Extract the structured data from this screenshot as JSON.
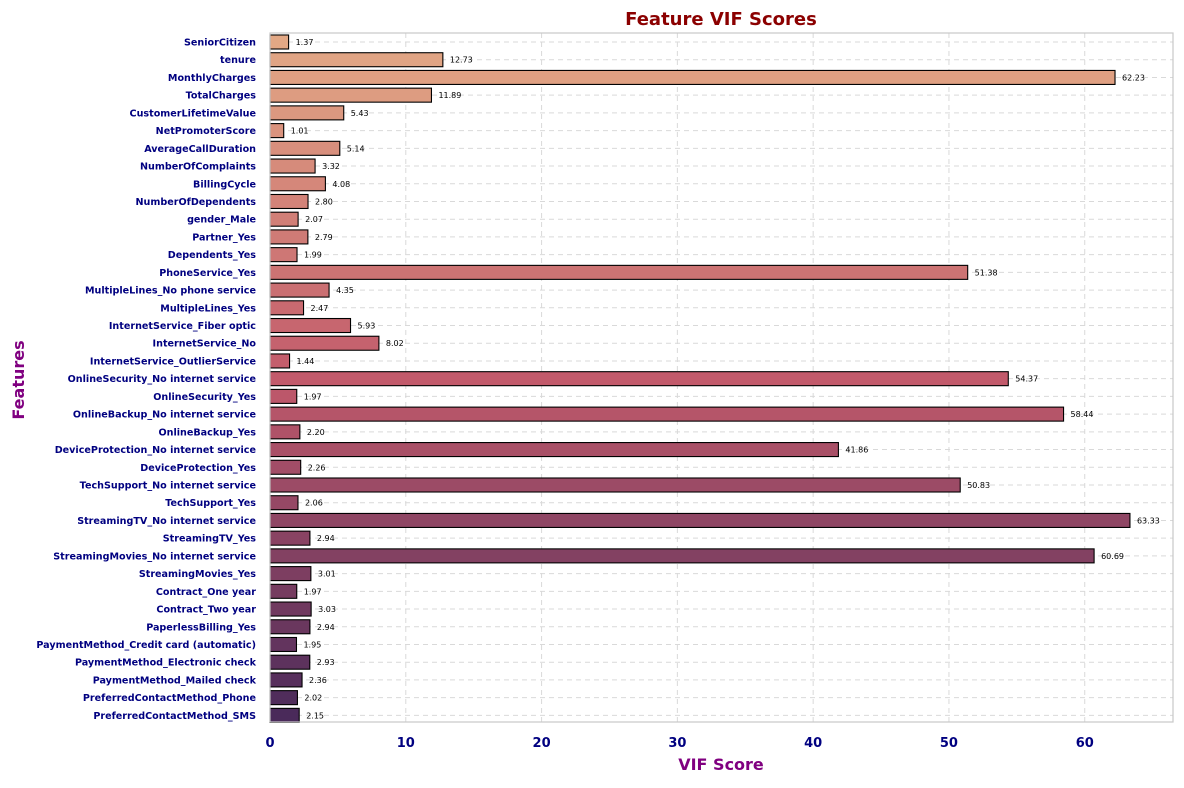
{
  "chart_data": {
    "type": "bar",
    "orientation": "horizontal",
    "title": "Feature VIF Scores",
    "xlabel": "VIF Score",
    "ylabel": "Features",
    "xlim": [
      0,
      66.5
    ],
    "xticks": [
      0,
      10,
      20,
      30,
      40,
      50,
      60
    ],
    "grid": true,
    "value_labels": true,
    "value_format": "2 decimals",
    "colors": {
      "title": "#8b0000",
      "axis_label": "#800080",
      "tick_label": "#000080",
      "bar_edge": "#000000",
      "grid": "#d9d9d9",
      "gradient_start": "#e2a885",
      "gradient_mid": "#c25a6b",
      "gradient_end": "#4a2a5a"
    },
    "categories": [
      "SeniorCitizen",
      "tenure",
      "MonthlyCharges",
      "TotalCharges",
      "CustomerLifetimeValue",
      "NetPromoterScore",
      "AverageCallDuration",
      "NumberOfComplaints",
      "BillingCycle",
      "NumberOfDependents",
      "gender_Male",
      "Partner_Yes",
      "Dependents_Yes",
      "PhoneService_Yes",
      "MultipleLines_No phone service",
      "MultipleLines_Yes",
      "InternetService_Fiber optic",
      "InternetService_No",
      "InternetService_OutlierService",
      "OnlineSecurity_No internet service",
      "OnlineSecurity_Yes",
      "OnlineBackup_No internet service",
      "OnlineBackup_Yes",
      "DeviceProtection_No internet service",
      "DeviceProtection_Yes",
      "TechSupport_No internet service",
      "TechSupport_Yes",
      "StreamingTV_No internet service",
      "StreamingTV_Yes",
      "StreamingMovies_No internet service",
      "StreamingMovies_Yes",
      "Contract_One year",
      "Contract_Two year",
      "PaperlessBilling_Yes",
      "PaymentMethod_Credit card (automatic)",
      "PaymentMethod_Electronic check",
      "PaymentMethod_Mailed check",
      "PreferredContactMethod_Phone",
      "PreferredContactMethod_SMS"
    ],
    "values": [
      1.37,
      12.73,
      62.23,
      11.89,
      5.43,
      1.01,
      5.14,
      3.32,
      4.08,
      2.8,
      2.07,
      2.79,
      1.99,
      51.38,
      4.35,
      2.47,
      5.93,
      8.02,
      1.44,
      54.37,
      1.97,
      58.44,
      2.2,
      41.86,
      2.26,
      50.83,
      2.06,
      63.33,
      2.94,
      60.69,
      3.01,
      1.97,
      3.03,
      2.94,
      1.95,
      2.93,
      2.36,
      2.02,
      2.15
    ]
  }
}
